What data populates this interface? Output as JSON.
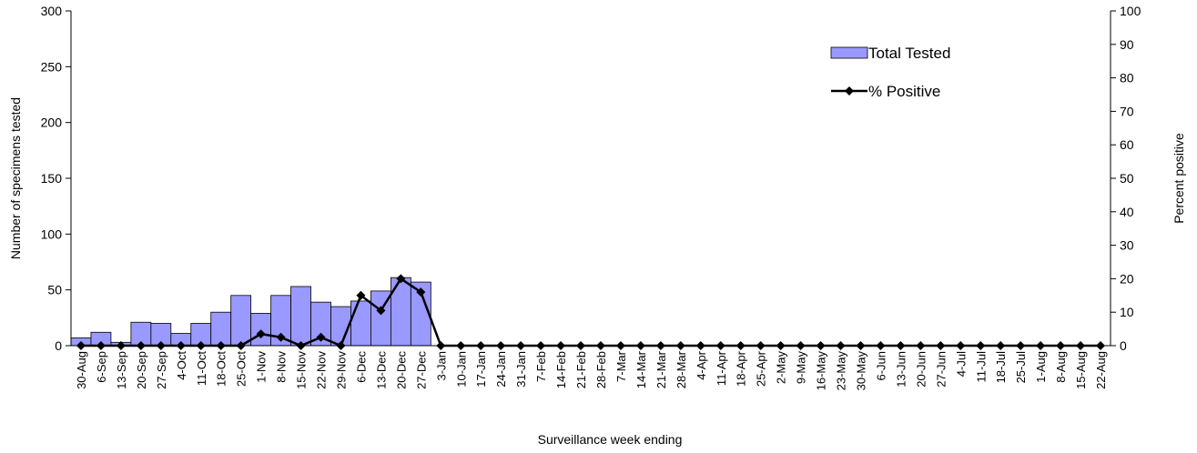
{
  "chart_data": {
    "type": "bar-line",
    "x_label": "Surveillance week ending",
    "y_label": "Number of specimens tested",
    "y2_label": "Percent positive",
    "categories": [
      "30-Aug",
      "6-Sep",
      "13-Sep",
      "20-Sep",
      "27-Sep",
      "4-Oct",
      "11-Oct",
      "18-Oct",
      "25-Oct",
      "1-Nov",
      "8-Nov",
      "15-Nov",
      "22-Nov",
      "29-Nov",
      "6-Dec",
      "13-Dec",
      "20-Dec",
      "27-Dec",
      "3-Jan",
      "10-Jan",
      "17-Jan",
      "24-Jan",
      "31-Jan",
      "7-Feb",
      "14-Feb",
      "21-Feb",
      "28-Feb",
      "7-Mar",
      "14-Mar",
      "21-Mar",
      "28-Mar",
      "4-Apr",
      "11-Apr",
      "18-Apr",
      "25-Apr",
      "2-May",
      "9-May",
      "16-May",
      "23-May",
      "30-May",
      "6-Jun",
      "13-Jun",
      "20-Jun",
      "27-Jun",
      "4-Jul",
      "11-Jul",
      "18-Jul",
      "25-Jul",
      "1-Aug",
      "8-Aug",
      "15-Aug",
      "22-Aug"
    ],
    "series": [
      {
        "name": "Total Tested",
        "type": "bar",
        "color": "#9999ff",
        "values": [
          7,
          12,
          3,
          21,
          20,
          11,
          20,
          30,
          45,
          29,
          45,
          53,
          39,
          35,
          40,
          49,
          61,
          57,
          0,
          0,
          0,
          0,
          0,
          0,
          0,
          0,
          0,
          0,
          0,
          0,
          0,
          0,
          0,
          0,
          0,
          0,
          0,
          0,
          0,
          0,
          0,
          0,
          0,
          0,
          0,
          0,
          0,
          0,
          0,
          0,
          0,
          0
        ]
      },
      {
        "name": "% Positive",
        "type": "line",
        "axis": "y2",
        "color": "#000000",
        "values": [
          0,
          0,
          0,
          0,
          0,
          0,
          0,
          0,
          0,
          3.5,
          2.5,
          0,
          2.5,
          0,
          15,
          10.5,
          20,
          16,
          0,
          0,
          0,
          0,
          0,
          0,
          0,
          0,
          0,
          0,
          0,
          0,
          0,
          0,
          0,
          0,
          0,
          0,
          0,
          0,
          0,
          0,
          0,
          0,
          0,
          0,
          0,
          0,
          0,
          0,
          0,
          0,
          0,
          0
        ]
      }
    ],
    "ylim": [
      0,
      300
    ],
    "yticks": [
      0,
      50,
      100,
      150,
      200,
      250,
      300
    ],
    "y2lim": [
      0,
      100
    ],
    "y2ticks": [
      0,
      10,
      20,
      30,
      40,
      50,
      60,
      70,
      80,
      90,
      100
    ],
    "grid": false,
    "legend": "upper-right"
  }
}
